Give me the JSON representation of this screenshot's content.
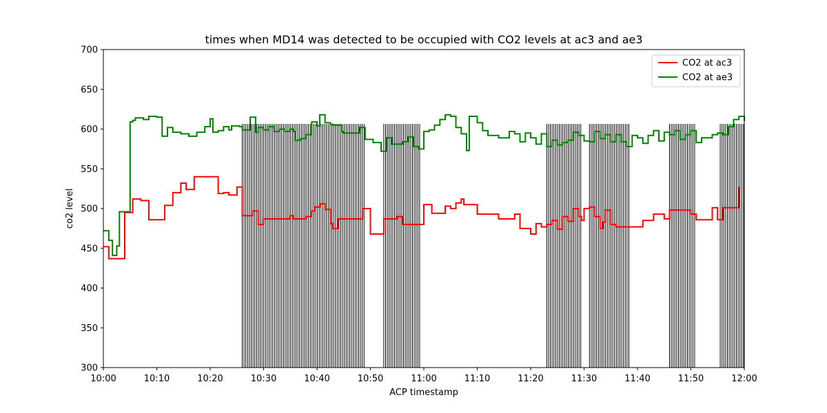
{
  "chart_data": {
    "type": "line",
    "title": "times when MD14 was detected to be occupied with CO2 levels at ac3 and ae3",
    "xlabel": "ACP timestamp",
    "ylabel": "co2 level",
    "ylim": [
      300,
      700
    ],
    "xlim": [
      "10:00",
      "12:00"
    ],
    "yticks": [
      "300",
      "350",
      "400",
      "450",
      "500",
      "550",
      "600",
      "650",
      "700"
    ],
    "xticks": [
      "10:00",
      "10:10",
      "10:20",
      "10:30",
      "10:40",
      "10:50",
      "11:00",
      "11:10",
      "11:20",
      "11:30",
      "11:40",
      "11:50",
      "12:00"
    ],
    "grid": false,
    "legend_position": "top-right",
    "occupied_intervals": [
      [
        "10:26",
        "10:49"
      ],
      [
        "10:52.5",
        "10:59.5"
      ],
      [
        "11:23",
        "11:29.5"
      ],
      [
        "11:31",
        "11:38.5"
      ],
      [
        "11:46",
        "11:51"
      ],
      [
        "11:55.5",
        "12:00"
      ]
    ],
    "series": [
      {
        "name": "CO2 at ac3",
        "color": "#ff0000",
        "points": [
          [
            "10:00",
            452
          ],
          [
            "10:01",
            437
          ],
          [
            "10:03",
            437
          ],
          [
            "10:04",
            495
          ],
          [
            "10:05",
            495
          ],
          [
            "10:05.5",
            512
          ],
          [
            "10:07",
            510
          ],
          [
            "10:08.5",
            486
          ],
          [
            "10:11.5",
            504
          ],
          [
            "10:13",
            520
          ],
          [
            "10:14.5",
            532
          ],
          [
            "10:15.5",
            524
          ],
          [
            "10:17",
            540
          ],
          [
            "10:21.5",
            519
          ],
          [
            "10:22.5",
            520
          ],
          [
            "10:23.5",
            517
          ],
          [
            "10:25",
            527
          ],
          [
            "10:26",
            491
          ],
          [
            "10:27.5",
            491
          ],
          [
            "10:28",
            497
          ],
          [
            "10:29",
            480
          ],
          [
            "10:30",
            487
          ],
          [
            "10:35",
            491
          ],
          [
            "10:35.5",
            487
          ],
          [
            "10:37",
            487
          ],
          [
            "10:38",
            490
          ],
          [
            "10:39",
            497
          ],
          [
            "10:39.5",
            502
          ],
          [
            "10:40.5",
            506
          ],
          [
            "10:41.5",
            499
          ],
          [
            "10:42.5",
            481
          ],
          [
            "10:43",
            475
          ],
          [
            "10:44",
            487
          ],
          [
            "10:47.5",
            487
          ],
          [
            "10:48.5",
            500
          ],
          [
            "10:50",
            468
          ],
          [
            "10:52.5",
            487
          ],
          [
            "10:55",
            490
          ],
          [
            "10:56",
            480
          ],
          [
            "10:59.5",
            480
          ],
          [
            "11:00",
            505
          ],
          [
            "11:01",
            505
          ],
          [
            "11:01.5",
            494
          ],
          [
            "11:03",
            494
          ],
          [
            "11:04",
            503
          ],
          [
            "11:05",
            500
          ],
          [
            "11:06",
            507
          ],
          [
            "11:07",
            512
          ],
          [
            "11:07.5",
            505
          ],
          [
            "11:09",
            505
          ],
          [
            "11:10",
            493
          ],
          [
            "11:12",
            493
          ],
          [
            "11:14",
            487
          ],
          [
            "11:16",
            487
          ],
          [
            "11:17",
            493
          ],
          [
            "11:18",
            475
          ],
          [
            "11:19.5",
            475
          ],
          [
            "11:20",
            468
          ],
          [
            "11:21",
            481
          ],
          [
            "11:22",
            477
          ],
          [
            "11:23",
            480
          ],
          [
            "11:24",
            485
          ],
          [
            "11:25",
            474
          ],
          [
            "11:26",
            490
          ],
          [
            "11:27",
            484
          ],
          [
            "11:28",
            500
          ],
          [
            "11:29",
            490
          ],
          [
            "11:29.5",
            485
          ],
          [
            "11:30",
            500
          ],
          [
            "11:31",
            502
          ],
          [
            "11:32",
            490
          ],
          [
            "11:33",
            475
          ],
          [
            "11:33.5",
            483
          ],
          [
            "11:34",
            498
          ],
          [
            "11:35",
            480
          ],
          [
            "11:36",
            477
          ],
          [
            "11:40",
            477
          ],
          [
            "11:41",
            485
          ],
          [
            "11:42",
            485
          ],
          [
            "11:43",
            493
          ],
          [
            "11:44",
            493
          ],
          [
            "11:45",
            487
          ],
          [
            "11:46",
            498
          ],
          [
            "11:49",
            498
          ],
          [
            "11:50",
            493
          ],
          [
            "11:51",
            486
          ],
          [
            "11:53",
            486
          ],
          [
            "11:54",
            501
          ],
          [
            "11:55",
            486
          ],
          [
            "11:55.5",
            486
          ],
          [
            "11:56",
            501
          ],
          [
            "11:57",
            501
          ],
          [
            "11:59",
            527
          ]
        ]
      },
      {
        "name": "CO2 at ae3",
        "color": "#008000",
        "points": [
          [
            "10:00",
            472
          ],
          [
            "10:0.5",
            472
          ],
          [
            "10:01",
            460
          ],
          [
            "10:01.5",
            460
          ],
          [
            "10:01.7",
            441
          ],
          [
            "10:02.5",
            453
          ],
          [
            "10:03",
            496
          ],
          [
            "10:04.5",
            496
          ],
          [
            "10:05",
            609
          ],
          [
            "10:05.5",
            611
          ],
          [
            "10:06",
            614
          ],
          [
            "10:07.5",
            612
          ],
          [
            "10:08.5",
            616
          ],
          [
            "10:10",
            615
          ],
          [
            "10:11",
            591
          ],
          [
            "10:12",
            602
          ],
          [
            "10:13",
            596
          ],
          [
            "10:14.5",
            594
          ],
          [
            "10:16",
            591
          ],
          [
            "10:17.5",
            596
          ],
          [
            "10:19",
            603
          ],
          [
            "10:20",
            613
          ],
          [
            "10:20.5",
            596
          ],
          [
            "10:21.5",
            598
          ],
          [
            "10:22.5",
            603
          ],
          [
            "10:23.5",
            599
          ],
          [
            "10:24",
            604
          ],
          [
            "10:25.5",
            603
          ],
          [
            "10:26",
            599
          ],
          [
            "10:27.5",
            615
          ],
          [
            "10:28.5",
            596
          ],
          [
            "10:29",
            602
          ],
          [
            "10:30",
            599
          ],
          [
            "10:31",
            603
          ],
          [
            "10:32",
            597
          ],
          [
            "10:33",
            600
          ],
          [
            "10:34",
            597
          ],
          [
            "10:35",
            600
          ],
          [
            "10:35.5",
            597
          ],
          [
            "10:36",
            586
          ],
          [
            "10:37",
            588
          ],
          [
            "10:38",
            593
          ],
          [
            "10:39",
            609
          ],
          [
            "10:40",
            604
          ],
          [
            "10:40.5",
            618
          ],
          [
            "10:41.5",
            608
          ],
          [
            "10:42.5",
            606
          ],
          [
            "10:43",
            605
          ],
          [
            "10:44.5",
            597
          ],
          [
            "10:45",
            595
          ],
          [
            "10:47",
            595
          ],
          [
            "10:48",
            602
          ],
          [
            "10:49",
            587
          ],
          [
            "10:50.5",
            583
          ],
          [
            "10:52",
            572
          ],
          [
            "10:53",
            589
          ],
          [
            "10:54",
            581
          ],
          [
            "10:55",
            581
          ],
          [
            "10:56",
            584
          ],
          [
            "10:57",
            590
          ],
          [
            "10:58",
            578
          ],
          [
            "10:59",
            575
          ],
          [
            "11:00",
            597
          ],
          [
            "11:01",
            599
          ],
          [
            "11:02",
            605
          ],
          [
            "11:03",
            612
          ],
          [
            "11:04",
            618
          ],
          [
            "11:05",
            616
          ],
          [
            "11:06",
            602
          ],
          [
            "11:07",
            594
          ],
          [
            "11:08",
            573
          ],
          [
            "11:08.5",
            616
          ],
          [
            "11:09.5",
            616
          ],
          [
            "11:10",
            608
          ],
          [
            "11:11",
            598
          ],
          [
            "11:12",
            592
          ],
          [
            "11:14",
            589
          ],
          [
            "11:15",
            589
          ],
          [
            "11:16",
            597
          ],
          [
            "11:17",
            594
          ],
          [
            "11:18",
            584
          ],
          [
            "11:19",
            595
          ],
          [
            "11:20",
            589
          ],
          [
            "11:21",
            581
          ],
          [
            "11:22",
            594
          ],
          [
            "11:23",
            578
          ],
          [
            "11:24",
            586
          ],
          [
            "11:25",
            580
          ],
          [
            "11:26",
            583
          ],
          [
            "11:27",
            586
          ],
          [
            "11:28",
            596
          ],
          [
            "11:29",
            592
          ],
          [
            "11:30",
            585
          ],
          [
            "11:31",
            584
          ],
          [
            "11:32",
            597
          ],
          [
            "11:33",
            588
          ],
          [
            "11:34",
            593
          ],
          [
            "11:35",
            584
          ],
          [
            "11:36",
            593
          ],
          [
            "11:37",
            584
          ],
          [
            "11:38",
            578
          ],
          [
            "11:39",
            592
          ],
          [
            "11:40",
            589
          ],
          [
            "11:41",
            582
          ],
          [
            "11:42",
            592
          ],
          [
            "11:43",
            598
          ],
          [
            "11:44",
            585
          ],
          [
            "11:45",
            596
          ],
          [
            "11:46",
            593
          ],
          [
            "11:47",
            598
          ],
          [
            "11:48",
            587
          ],
          [
            "11:49",
            593
          ],
          [
            "11:50",
            598
          ],
          [
            "11:51",
            583
          ],
          [
            "11:52",
            589
          ],
          [
            "11:53",
            589
          ],
          [
            "11:54",
            593
          ],
          [
            "11:55",
            595
          ],
          [
            "11:56",
            593
          ],
          [
            "11:57",
            603
          ],
          [
            "11:58",
            612
          ],
          [
            "11:59",
            616
          ],
          [
            "12:00",
            610
          ]
        ]
      }
    ]
  }
}
